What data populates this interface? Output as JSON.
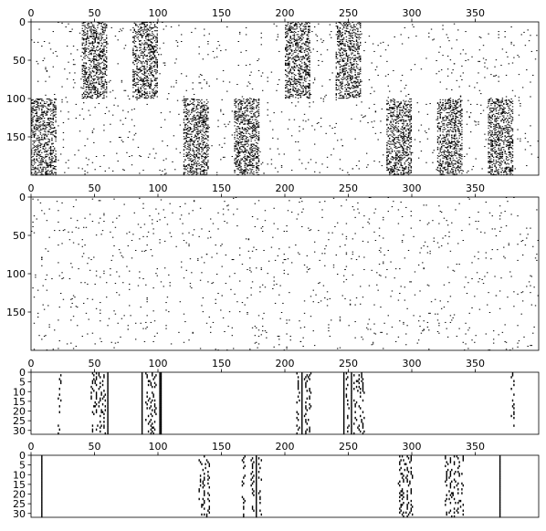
{
  "chart_data": [
    {
      "type": "heatmap",
      "title": "",
      "xlabel": "",
      "ylabel": "",
      "xlim": [
        0,
        400
      ],
      "ylim": [
        200,
        0
      ],
      "xticks": [
        0,
        50,
        100,
        150,
        200,
        250,
        300,
        350
      ],
      "yticks": [
        0,
        50,
        100,
        150
      ],
      "colors": {
        "on": "#000000",
        "off": "#ffffff"
      },
      "blocks": [
        {
          "x": [
            0,
            20
          ],
          "y": [
            100,
            200
          ],
          "density": 0.3
        },
        {
          "x": [
            40,
            60
          ],
          "y": [
            0,
            100
          ],
          "density": 0.3
        },
        {
          "x": [
            80,
            100
          ],
          "y": [
            0,
            100
          ],
          "density": 0.3
        },
        {
          "x": [
            120,
            140
          ],
          "y": [
            100,
            200
          ],
          "density": 0.3
        },
        {
          "x": [
            160,
            180
          ],
          "y": [
            100,
            200
          ],
          "density": 0.3
        },
        {
          "x": [
            200,
            220
          ],
          "y": [
            0,
            100
          ],
          "density": 0.3
        },
        {
          "x": [
            240,
            260
          ],
          "y": [
            0,
            100
          ],
          "density": 0.3
        },
        {
          "x": [
            280,
            300
          ],
          "y": [
            100,
            200
          ],
          "density": 0.3
        },
        {
          "x": [
            320,
            340
          ],
          "y": [
            100,
            200
          ],
          "density": 0.3
        },
        {
          "x": [
            360,
            380
          ],
          "y": [
            100,
            200
          ],
          "density": 0.3
        }
      ],
      "background_density": 0.012
    },
    {
      "type": "heatmap",
      "title": "",
      "xlabel": "",
      "ylabel": "",
      "xlim": [
        0,
        400
      ],
      "ylim": [
        200,
        0
      ],
      "xticks": [
        0,
        50,
        100,
        150,
        200,
        250,
        300,
        350
      ],
      "yticks": [
        0,
        50,
        100,
        150
      ],
      "colors": {
        "on": "#000000",
        "off": "#ffffff"
      },
      "blocks": [],
      "background_density": 0.012
    },
    {
      "type": "heatmap",
      "title": "",
      "xlabel": "",
      "ylabel": "",
      "xlim": [
        0,
        400
      ],
      "ylim": [
        32,
        0
      ],
      "xticks": [
        0,
        50,
        100,
        150,
        200,
        250,
        300,
        350
      ],
      "yticks": [
        0,
        5,
        10,
        15,
        20,
        25,
        30
      ],
      "colors": {
        "on": "#000000",
        "off": "#ffffff"
      },
      "columns": [
        {
          "x": 22,
          "density": 0.55
        },
        {
          "x": 48,
          "density": 0.55
        },
        {
          "x": 51,
          "density": 0.55
        },
        {
          "x": 54,
          "density": 0.55
        },
        {
          "x": 57,
          "density": 0.55
        },
        {
          "x": 60,
          "density": 1.0
        },
        {
          "x": 87,
          "density": 1.0
        },
        {
          "x": 91,
          "density": 0.55
        },
        {
          "x": 94,
          "density": 0.55
        },
        {
          "x": 97,
          "density": 0.55
        },
        {
          "x": 101,
          "density": 1.0
        },
        {
          "x": 102,
          "density": 1.0
        },
        {
          "x": 210,
          "density": 0.55
        },
        {
          "x": 213,
          "density": 1.0
        },
        {
          "x": 216,
          "density": 0.55
        },
        {
          "x": 219,
          "density": 0.55
        },
        {
          "x": 246,
          "density": 1.0
        },
        {
          "x": 249,
          "density": 0.55
        },
        {
          "x": 252,
          "density": 1.0
        },
        {
          "x": 255,
          "density": 0.55
        },
        {
          "x": 258,
          "density": 0.55
        },
        {
          "x": 261,
          "density": 0.55
        },
        {
          "x": 379,
          "density": 0.55
        }
      ]
    },
    {
      "type": "heatmap",
      "title": "",
      "xlabel": "",
      "ylabel": "",
      "xlim": [
        0,
        400
      ],
      "ylim": [
        32,
        0
      ],
      "xticks": [
        0,
        50,
        100,
        150,
        200,
        250,
        300,
        350
      ],
      "yticks": [
        0,
        5,
        10,
        15,
        20,
        25,
        30
      ],
      "colors": {
        "on": "#000000",
        "off": "#ffffff"
      },
      "columns": [
        {
          "x": 8,
          "density": 1.0
        },
        {
          "x": 133,
          "density": 0.55
        },
        {
          "x": 136,
          "density": 0.55
        },
        {
          "x": 139,
          "density": 0.55
        },
        {
          "x": 167,
          "density": 0.55
        },
        {
          "x": 174,
          "density": 0.55
        },
        {
          "x": 177,
          "density": 1.0
        },
        {
          "x": 180,
          "density": 0.55
        },
        {
          "x": 290,
          "density": 0.55
        },
        {
          "x": 293,
          "density": 0.55
        },
        {
          "x": 296,
          "density": 0.55
        },
        {
          "x": 299,
          "density": 0.55
        },
        {
          "x": 327,
          "density": 0.55
        },
        {
          "x": 330,
          "density": 0.55
        },
        {
          "x": 333,
          "density": 0.55
        },
        {
          "x": 336,
          "density": 0.55
        },
        {
          "x": 339,
          "density": 0.55
        },
        {
          "x": 369,
          "density": 1.0
        }
      ]
    }
  ]
}
